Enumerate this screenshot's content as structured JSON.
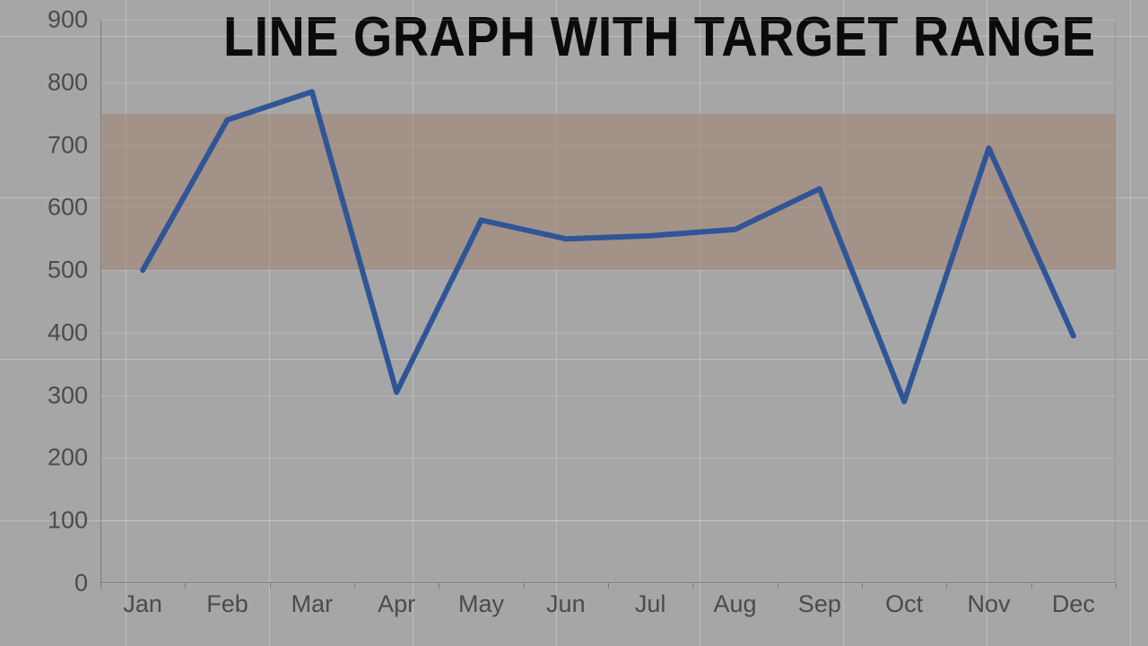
{
  "title": "LINE GRAPH WITH TARGET RANGE",
  "chart": {
    "type": "line",
    "background_color": "#a6a6a6",
    "title_fontsize": 62,
    "title_color": "#0b0b0b",
    "categories": [
      "Jan",
      "Feb",
      "Mar",
      "Apr",
      "May",
      "Jun",
      "Jul",
      "Aug",
      "Sep",
      "Oct",
      "Nov",
      "Dec"
    ],
    "values": [
      500,
      740,
      785,
      305,
      580,
      550,
      555,
      565,
      630,
      290,
      695,
      395
    ],
    "line_color": "#2f5597",
    "line_width": 6,
    "ylim": [
      0,
      900
    ],
    "ytick_step": 100,
    "y_ticks": [
      0,
      100,
      200,
      300,
      400,
      500,
      600,
      700,
      800,
      900
    ],
    "grid": true,
    "gridline_color": "rgba(255,255,255,0.18)",
    "axis_line_color": "rgba(80,80,80,0.5)",
    "tick_label_color": "#4b4b4b",
    "tick_label_fontsize": 27,
    "target_range": {
      "low": 500,
      "high": 750,
      "fill_color": "rgba(160,130,110,0.55)"
    }
  }
}
